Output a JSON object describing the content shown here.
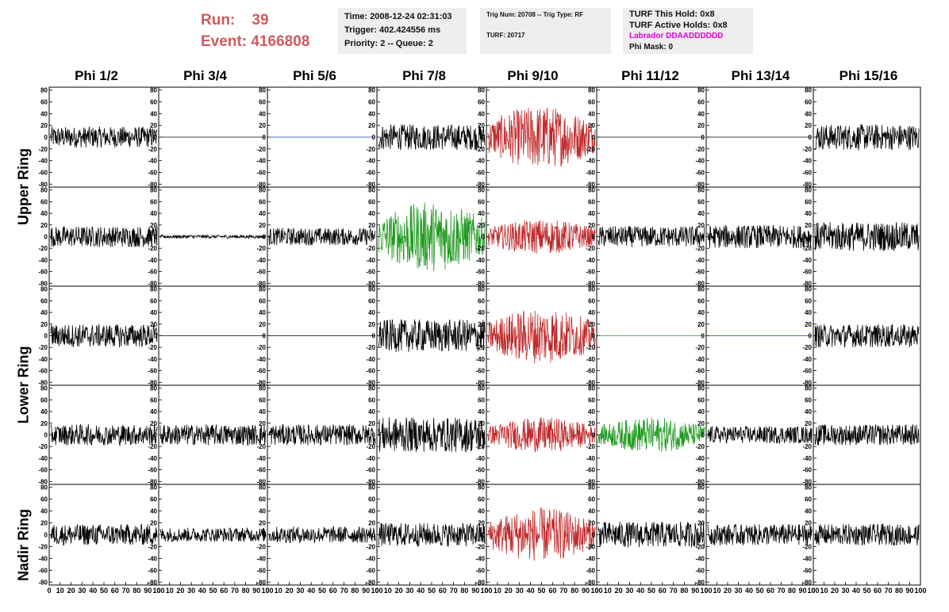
{
  "run": {
    "run_label": "Run:",
    "run_value": "39",
    "event_label": "Event:",
    "event_value": "4166808"
  },
  "info1": {
    "time": "Time: 2008-12-24 02:31:03",
    "trigger": "Trigger: 402.424556 ms",
    "priority": "Priority: 2 -- Queue: 2"
  },
  "info2": {
    "trig": "Trig Num: 20708 -- Trig Type: RF",
    "turf": "TURF: 20717"
  },
  "info3": {
    "hold": "TURF This Hold: 0x8",
    "active": "TURF Active Holds: 0x8",
    "labrador": "Labrador DDAADDDDDD",
    "phimask": "Phi Mask: 0"
  },
  "columns": [
    "Phi 1/2",
    "Phi 3/4",
    "Phi 5/6",
    "Phi 7/8",
    "Phi 9/10",
    "Phi 11/12",
    "Phi 13/14",
    "Phi 15/16"
  ],
  "rings": [
    "Upper Ring",
    "Lower Ring",
    "Nadir Ring"
  ],
  "colors": {
    "red": "#d05a5a",
    "magenta": "#dd00dd"
  },
  "chart_data": {
    "type": "line",
    "ylim": [
      -85,
      85
    ],
    "xlim": [
      0,
      100
    ],
    "yticks": [
      "80",
      "60",
      "40",
      "20",
      "0",
      "-20",
      "-40",
      "-60",
      "-80"
    ],
    "xticks": [
      "0",
      "10",
      "20",
      "30",
      "40",
      "50",
      "60",
      "70",
      "80",
      "90",
      "100"
    ],
    "traces": [
      [
        "black",
        "flat",
        "flat-blue",
        "black",
        "red",
        "flat",
        "flat",
        "black"
      ],
      [
        "black",
        "black-small",
        "black",
        "green",
        "red",
        "black",
        "black",
        "black"
      ],
      [
        "black",
        "flat",
        "flat",
        "black",
        "red",
        "flat-green",
        "flat-blue",
        "black"
      ],
      [
        "black",
        "black",
        "black",
        "black",
        "red",
        "green",
        "black",
        "black"
      ],
      [
        "black",
        "black",
        "black",
        "black",
        "red",
        "black",
        "black",
        "black"
      ]
    ],
    "amplitudes": [
      [
        18,
        0,
        0,
        22,
        45,
        0,
        0,
        22
      ],
      [
        18,
        3,
        15,
        50,
        25,
        18,
        20,
        25
      ],
      [
        20,
        0,
        0,
        28,
        40,
        0,
        0,
        20
      ],
      [
        18,
        18,
        18,
        30,
        25,
        25,
        15,
        18
      ],
      [
        18,
        12,
        14,
        20,
        38,
        22,
        18,
        18
      ]
    ]
  }
}
